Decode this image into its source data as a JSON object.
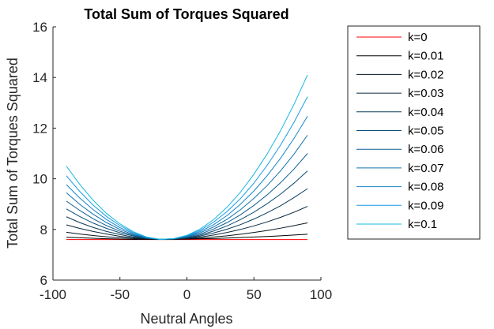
{
  "chart_data": {
    "type": "line",
    "title": "Total Sum of Torques Squared",
    "xlabel": "Neutral Angles",
    "ylabel": "Total Sum of Torques Squared",
    "xlim": [
      -100,
      100
    ],
    "ylim": [
      6,
      16
    ],
    "xticks": [
      -100,
      -50,
      0,
      50,
      100
    ],
    "yticks": [
      6,
      8,
      10,
      12,
      14,
      16
    ],
    "grid": false,
    "legend_position": "outside-right",
    "x": [
      -90,
      -80,
      -70,
      -60,
      -50,
      -40,
      -30,
      -20,
      -10,
      0,
      10,
      20,
      30,
      40,
      50,
      60,
      70,
      80,
      90
    ],
    "series": [
      {
        "name": "k=0",
        "color": "#ff0000",
        "values": [
          7.6,
          7.6,
          7.6,
          7.6,
          7.6,
          7.6,
          7.6,
          7.6,
          7.6,
          7.6,
          7.6,
          7.6,
          7.6,
          7.6,
          7.6,
          7.6,
          7.6,
          7.6,
          7.6
        ]
      },
      {
        "name": "k=0.01",
        "color": "#000000",
        "values": [
          7.69,
          7.67,
          7.65,
          7.63,
          7.62,
          7.61,
          7.61,
          7.61,
          7.61,
          7.62,
          7.63,
          7.64,
          7.66,
          7.68,
          7.7,
          7.72,
          7.75,
          7.78,
          7.81
        ]
      },
      {
        "name": "k=0.02",
        "color": "#03131d",
        "values": [
          7.89,
          7.82,
          7.76,
          7.71,
          7.67,
          7.64,
          7.62,
          7.61,
          7.61,
          7.63,
          7.66,
          7.7,
          7.75,
          7.81,
          7.88,
          7.96,
          8.05,
          8.15,
          8.26
        ]
      },
      {
        "name": "k=0.03",
        "color": "#06263a",
        "values": [
          8.18,
          8.04,
          7.92,
          7.82,
          7.73,
          7.67,
          7.63,
          7.61,
          7.62,
          7.65,
          7.7,
          7.78,
          7.88,
          8.0,
          8.14,
          8.3,
          8.48,
          8.68,
          8.91
        ]
      },
      {
        "name": "k=0.04",
        "color": "#083958",
        "values": [
          8.5,
          8.27,
          8.08,
          7.92,
          7.8,
          7.7,
          7.64,
          7.61,
          7.62,
          7.66,
          7.74,
          7.86,
          8.01,
          8.19,
          8.41,
          8.66,
          8.94,
          9.26,
          9.61
        ]
      },
      {
        "name": "k=0.05",
        "color": "#0b4c75",
        "values": [
          8.81,
          8.51,
          8.25,
          8.04,
          7.87,
          7.74,
          7.65,
          7.61,
          7.62,
          7.68,
          7.78,
          7.94,
          8.14,
          8.39,
          8.68,
          9.02,
          9.4,
          9.83,
          10.31
        ]
      },
      {
        "name": "k=0.06",
        "color": "#0e5f92",
        "values": [
          9.12,
          8.75,
          8.42,
          8.15,
          7.93,
          7.77,
          7.66,
          7.61,
          7.63,
          7.7,
          7.82,
          8.02,
          8.27,
          8.58,
          8.95,
          9.37,
          9.85,
          10.39,
          11.0
        ]
      },
      {
        "name": "k=0.07",
        "color": "#1172af",
        "values": [
          9.45,
          8.99,
          8.6,
          8.27,
          8.0,
          7.8,
          7.67,
          7.61,
          7.63,
          7.72,
          7.87,
          8.1,
          8.4,
          8.78,
          9.23,
          9.74,
          10.32,
          10.98,
          11.72
        ]
      },
      {
        "name": "k=0.08",
        "color": "#1485cc",
        "values": [
          9.77,
          9.24,
          8.78,
          8.39,
          8.07,
          7.84,
          7.68,
          7.61,
          7.63,
          7.73,
          7.92,
          8.19,
          8.55,
          9.0,
          9.52,
          10.13,
          10.82,
          11.6,
          12.47
        ]
      },
      {
        "name": "k=0.09",
        "color": "#179ae4",
        "values": [
          10.12,
          9.5,
          8.96,
          8.51,
          8.15,
          7.87,
          7.69,
          7.61,
          7.63,
          7.75,
          7.97,
          8.29,
          8.71,
          9.22,
          9.83,
          10.54,
          11.34,
          12.24,
          13.24
        ]
      },
      {
        "name": "k=0.1",
        "color": "#19b8e0",
        "values": [
          10.5,
          9.78,
          9.15,
          8.63,
          8.22,
          7.91,
          7.7,
          7.61,
          7.64,
          7.77,
          8.02,
          8.39,
          8.88,
          9.47,
          10.18,
          10.99,
          11.91,
          12.95,
          14.1
        ]
      }
    ]
  }
}
